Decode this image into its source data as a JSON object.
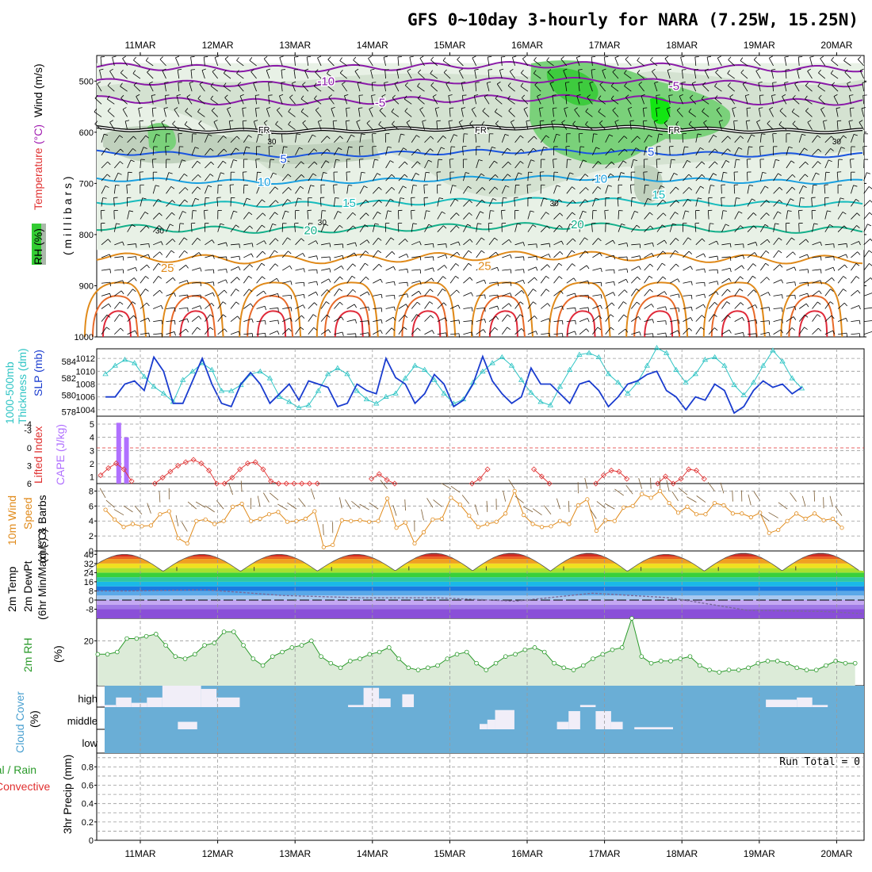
{
  "title": "GFS 0~10day 3-hourly for NARA (7.25W, 15.25N)",
  "dates": [
    "11MAR",
    "12MAR",
    "13MAR",
    "14MAR",
    "15MAR",
    "16MAR",
    "17MAR",
    "18MAR",
    "19MAR",
    "20MAR"
  ],
  "colors": {
    "grid": "#999999",
    "temp_purple": "#8a1aa8",
    "temp_blue": "#1a55e0",
    "temp_lightblue": "#1aa0e0",
    "temp_cyan": "#17bcbc",
    "temp_teal": "#14b08a",
    "temp_orange": "#e08a1a",
    "temp_red": "#e02a3a",
    "rh_green": "#33cc33",
    "rh_grey": "#a9b8a9",
    "slp": "#1a3ccf",
    "thickness": "#2ec4c4",
    "lifted_index": "#e03030",
    "cape": "#b070ff",
    "wind_speed": "#e08a1a",
    "cloud_bg": "#6aaed6",
    "rh2m": "#2a9a2a",
    "dewpt": "#7a6a9a"
  },
  "panel_labels": {
    "upper": {
      "rh": "RH (%)",
      "temperature": "Temperature",
      "temp_unit": "(°C)",
      "wind": "Wind (m/s)",
      "millibars": "( m i l l i b a r s )"
    },
    "slp": {
      "thickness": "1000-500mb",
      "thickness2": "Thickness (dm)",
      "slp": "SLP (mb)"
    },
    "stability": {
      "li": "Lifted Index",
      "cape": "CAPE (J/kg)"
    },
    "wind10": {
      "a": "10m Wind",
      "b": "Speed",
      "c": "(m/s) & Barbs"
    },
    "temp2m": {
      "a": "2m Temp",
      "b": "2m DewPt",
      "c": "(6hr Min/Max) (°C)"
    },
    "rh2m": {
      "a": "2m RH",
      "b": "(%)"
    },
    "cloud": {
      "a": "Cloud Cover",
      "b": "(%)",
      "high": "high",
      "middle": "middle",
      "low": "low"
    },
    "precip": {
      "a": "Total / Rain",
      "b": "Convective",
      "c": "3hr Precip (mm)"
    }
  },
  "run_total": "Run Total = 0",
  "chart_data": [
    {
      "type": "contour",
      "name": "upper-air",
      "y_axis": {
        "label": "millibars",
        "ticks": [
          500,
          600,
          700,
          800,
          900,
          1000
        ],
        "range": [
          450,
          1000
        ],
        "inverted": true
      },
      "isotherm_labels": [
        {
          "text": "-10",
          "date_index": 2.4,
          "p": 500
        },
        {
          "text": "-5",
          "date_index": 3.1,
          "p": 542
        },
        {
          "text": "-5",
          "date_index": 6.9,
          "p": 510
        },
        {
          "text": "FR",
          "date_index": 1.6,
          "p": 593
        },
        {
          "text": "FR",
          "date_index": 4.4,
          "p": 593
        },
        {
          "text": "FR",
          "date_index": 6.9,
          "p": 593
        },
        {
          "text": "5",
          "date_index": 1.85,
          "p": 652
        },
        {
          "text": "5",
          "date_index": 6.6,
          "p": 638
        },
        {
          "text": "10",
          "date_index": 1.6,
          "p": 697
        },
        {
          "text": "10",
          "date_index": 5.95,
          "p": 691
        },
        {
          "text": "15",
          "date_index": 2.7,
          "p": 738
        },
        {
          "text": "15",
          "date_index": 6.7,
          "p": 722
        },
        {
          "text": "20",
          "date_index": 2.2,
          "p": 792
        },
        {
          "text": "20",
          "date_index": 5.65,
          "p": 780
        },
        {
          "text": "25",
          "date_index": 0.35,
          "p": 865
        },
        {
          "text": "25",
          "date_index": 4.45,
          "p": 861
        }
      ],
      "rh_labels": [
        {
          "text": "30",
          "date_index": 0.25,
          "p": 792
        },
        {
          "text": "30",
          "date_index": 1.7,
          "p": 617
        },
        {
          "text": "30",
          "date_index": 2.35,
          "p": 775
        },
        {
          "text": "30",
          "date_index": 5.35,
          "p": 738
        },
        {
          "text": "30",
          "date_index": 9.0,
          "p": 617
        }
      ]
    },
    {
      "type": "line",
      "name": "slp-thickness",
      "y_left": {
        "label": "1000-500mb Thickness (dm)",
        "ticks": [
          578,
          580,
          582,
          584
        ],
        "range": [
          577.5,
          585.5
        ]
      },
      "y_right": {
        "label": "SLP (mb)",
        "ticks": [
          1004,
          1006,
          1008,
          1010,
          1012
        ],
        "range": [
          1003,
          1013.5
        ]
      },
      "series": [
        {
          "name": "SLP",
          "axis": "right",
          "values": [
            1006,
            1006,
            1008,
            1008.5,
            1007,
            1012.2,
            1010,
            1005,
            1005,
            1008.5,
            1012,
            1008,
            1005,
            1004.5,
            1008,
            1009.8,
            1008,
            1005,
            1006.5,
            1008,
            1005.5,
            1008.5,
            1008,
            1007.5,
            1004.5,
            1005,
            1008,
            1007,
            1006.5,
            1012,
            1009,
            1008,
            1005,
            1006.5,
            1009.5,
            1008,
            1004.5,
            1005.5,
            1008,
            1012.3,
            1008.5,
            1006.5,
            1005,
            1006,
            1010.5,
            1008,
            1008,
            1006.5,
            1005,
            1008,
            1008.5,
            1007,
            1004.5,
            1006,
            1008,
            1008.5,
            1009.5,
            1010,
            1007,
            1006,
            1004,
            1006,
            1005.5,
            1008,
            1007,
            1003.5,
            1004.5,
            1007,
            1008.5,
            1007.5,
            1008,
            1006.5,
            1007.5
          ]
        },
        {
          "name": "Thickness",
          "axis": "left",
          "values": [
            582.5,
            583.5,
            584.2,
            583.8,
            582.2,
            581,
            580.2,
            579.2,
            581.8,
            582.8,
            583.8,
            583,
            580.5,
            580.5,
            581.2,
            582.5,
            582.8,
            582,
            579.8,
            579.2,
            578.5,
            578.8,
            580.5,
            582.5,
            583.2,
            582.5,
            580.5,
            579.5,
            579,
            579.8,
            580.2,
            582,
            583.5,
            583,
            581.8,
            580.2,
            579,
            579.5,
            581.5,
            582.8,
            583.8,
            584.5,
            583.5,
            581.8,
            580.3,
            579.2,
            578.8,
            581,
            583,
            584.8,
            585,
            584.5,
            582.5,
            581.5,
            580.2,
            581.5,
            583.5,
            585.6,
            585,
            583,
            581.5,
            582.5,
            584.2,
            584.5,
            583.5,
            581.2,
            580,
            581.5,
            583.5,
            585.3,
            584,
            582,
            580.8
          ]
        }
      ]
    },
    {
      "type": "bar+line",
      "name": "stability",
      "y_left": {
        "label": "Lifted Index",
        "ticks": [
          -4,
          -3,
          0,
          3,
          6
        ],
        "inverted": true
      },
      "y_right": {
        "label": "CAPE (J/kg)",
        "ticks": [
          1,
          2,
          3,
          4,
          5
        ],
        "range": [
          1,
          5.5
        ]
      },
      "cape": {
        "date_index": [
          0.1,
          0.2
        ],
        "values": [
          5.1,
          4.0
        ]
      },
      "lifted_index": {
        "date_index": [
          0,
          0.1,
          0.2,
          0.3,
          0.4,
          0.7,
          0.8,
          0.9,
          1.0,
          1.1,
          1.2,
          1.3,
          1.4,
          1.5,
          1.6,
          1.7,
          1.8,
          1.9,
          2.0,
          2.1,
          2.2,
          2.3,
          2.4,
          2.5,
          2.6,
          2.7,
          2.8,
          3.5,
          3.6,
          3.7,
          3.8,
          4.8,
          4.9,
          5.0,
          5.6,
          5.7,
          5.8,
          6.4,
          6.5,
          6.6,
          6.7,
          6.8,
          7.2,
          7.3,
          7.4,
          7.5,
          7.6,
          7.7,
          7.8
        ],
        "values": [
          4.6,
          3.4,
          2.6,
          3.6,
          5.6,
          6,
          5,
          4,
          3,
          2.4,
          2,
          2.6,
          3.8,
          6,
          6,
          5,
          3.6,
          2.6,
          2.4,
          3.6,
          5.6,
          6,
          6,
          6,
          6,
          6,
          6,
          5.2,
          4.4,
          5.4,
          6,
          6,
          5.2,
          3.6,
          3.6,
          4.8,
          6,
          6,
          4.6,
          3.8,
          4,
          5.2,
          6,
          4.8,
          6,
          5.2,
          3.6,
          3.8,
          5.2
        ]
      }
    },
    {
      "type": "line",
      "name": "10m-wind",
      "y_axis": {
        "label": "Speed (m/s)",
        "ticks": [
          0,
          2,
          4,
          6,
          8
        ],
        "range": [
          0,
          9
        ]
      },
      "values": [
        5.5,
        4.2,
        3.2,
        3.6,
        3.3,
        3.4,
        4.9,
        5.3,
        1.7,
        1.0,
        4.0,
        4.2,
        3.6,
        4.0,
        5.9,
        6.3,
        4.0,
        4.3,
        4.9,
        5.2,
        3.9,
        4.0,
        4.3,
        5.3,
        0.5,
        0.8,
        4.1,
        4.0,
        4.1,
        3.9,
        4.0,
        7.0,
        3.1,
        3.8,
        1.0,
        2.5,
        4.2,
        4.3,
        7.1,
        6.2,
        4.7,
        3.2,
        3.6,
        3.9,
        5.0,
        8.0,
        4.8,
        3.6,
        3.2,
        3.3,
        4.0,
        3.6,
        6.1,
        6.9,
        2.7,
        4.1,
        4.0,
        5.8,
        6.0,
        7.6,
        7.1,
        8.0,
        6.4,
        5.1,
        5.9,
        4.9,
        4.9,
        6.4,
        6.1,
        5.0,
        5.0,
        4.5,
        5.1,
        2.4,
        2.8,
        4.0,
        5.0,
        4.3,
        5.0,
        4.1,
        4.3,
        3.1
      ]
    },
    {
      "type": "area",
      "name": "2m-temp",
      "y_axis": {
        "label": "(°C)",
        "ticks": [
          -8,
          0,
          8,
          16,
          24,
          32,
          40
        ],
        "range": [
          -16,
          43
        ]
      },
      "temp_max": [
        40,
        40,
        40,
        40,
        41,
        41,
        41,
        40,
        41,
        41
      ],
      "temp_min": [
        25.5,
        25.5,
        25.5,
        26,
        26,
        26,
        25.5,
        25.5,
        26,
        26
      ],
      "dewpoint": [
        8,
        9,
        4,
        2,
        2,
        -1,
        6,
        2,
        -9,
        -10
      ]
    },
    {
      "type": "line",
      "name": "2m-rh",
      "y_axis": {
        "label": "(%)",
        "ticks": [
          20
        ],
        "range": [
          0,
          30
        ]
      },
      "values": [
        14,
        14,
        15,
        21,
        21,
        22,
        23,
        18,
        13,
        12,
        14,
        18,
        19,
        24,
        24,
        18,
        12,
        9,
        13,
        15,
        17,
        18,
        20,
        13,
        10,
        8,
        11,
        12,
        14,
        15,
        17,
        12,
        8,
        7,
        8,
        9,
        12,
        14,
        15,
        10,
        7,
        10,
        13,
        14,
        16,
        17,
        15,
        10,
        8,
        7,
        9,
        12,
        14,
        16,
        17,
        30,
        13,
        10,
        11,
        11,
        12,
        13,
        9,
        7,
        6,
        7,
        7,
        8,
        10,
        11,
        11,
        10,
        8,
        7,
        7,
        9,
        11,
        10,
        10
      ]
    },
    {
      "type": "bar",
      "name": "cloud-cover",
      "levels": [
        "high",
        "middle",
        "low"
      ],
      "high_blocks": [
        {
          "from": 0.1,
          "to": 0.3,
          "value": 0.1
        },
        {
          "from": 0.3,
          "to": 0.5,
          "value": 0.45
        },
        {
          "from": 0.5,
          "to": 0.7,
          "value": 0.2
        },
        {
          "from": 0.7,
          "to": 0.9,
          "value": 0.45
        },
        {
          "from": 0.9,
          "to": 1.4,
          "value": 1.0
        },
        {
          "from": 1.4,
          "to": 1.6,
          "value": 0.85
        },
        {
          "from": 1.6,
          "to": 1.9,
          "value": 0.45
        },
        {
          "from": 3.3,
          "to": 3.5,
          "value": 0.1
        },
        {
          "from": 3.5,
          "to": 3.7,
          "value": 0.9
        },
        {
          "from": 3.7,
          "to": 3.85,
          "value": 0.4
        },
        {
          "from": 4.0,
          "to": 4.15,
          "value": 0.6
        },
        {
          "from": 6.3,
          "to": 6.5,
          "value": 0.1
        },
        {
          "from": 8.7,
          "to": 9.1,
          "value": 0.35
        },
        {
          "from": 9.1,
          "to": 9.3,
          "value": 0.45
        },
        {
          "from": 9.3,
          "to": 9.5,
          "value": 0.1
        }
      ],
      "middle_blocks": [
        {
          "from": 1.1,
          "to": 1.35,
          "value": 0.35
        },
        {
          "from": 5.0,
          "to": 5.1,
          "value": 0.25
        },
        {
          "from": 5.1,
          "to": 5.2,
          "value": 0.45
        },
        {
          "from": 5.2,
          "to": 5.45,
          "value": 0.9
        },
        {
          "from": 6.0,
          "to": 6.15,
          "value": 0.35
        },
        {
          "from": 6.15,
          "to": 6.3,
          "value": 0.85
        },
        {
          "from": 6.5,
          "to": 6.7,
          "value": 0.85
        },
        {
          "from": 6.7,
          "to": 6.85,
          "value": 0.35
        },
        {
          "from": 7.0,
          "to": 7.5,
          "value": 0.1
        }
      ]
    },
    {
      "type": "bar",
      "name": "precip",
      "y_axis": {
        "label": "3hr Precip (mm)",
        "ticks": [
          0,
          0.2,
          0.4,
          0.6,
          0.8
        ],
        "range": [
          0,
          0.95
        ]
      },
      "values": []
    }
  ]
}
